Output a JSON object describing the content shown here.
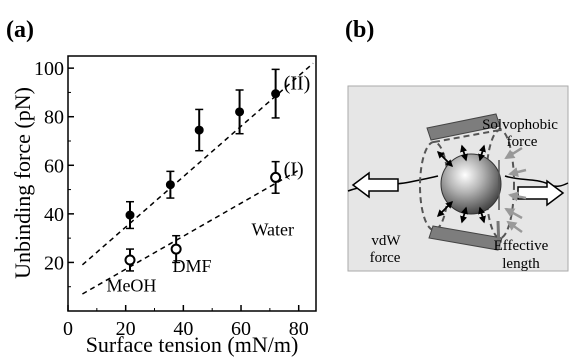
{
  "panels": [
    {
      "label": "(a)"
    },
    {
      "label": "(b)"
    }
  ],
  "chart_data": {
    "type": "scatter",
    "panel": "(a)",
    "xlabel": "Surface tension (mN/m)",
    "ylabel": "Unbinding force (pN)",
    "xlim": [
      0,
      86
    ],
    "ylim": [
      0,
      105
    ],
    "xticks": [
      0,
      20,
      40,
      60,
      80
    ],
    "yticks": [
      20,
      40,
      60,
      80,
      100
    ],
    "grid": false,
    "series": [
      {
        "name": "(II)",
        "marker": "filled-circle",
        "x": [
          21.5,
          35.5,
          45.5,
          59.5,
          72.0
        ],
        "y": [
          39.5,
          52.0,
          74.5,
          82.0,
          89.5
        ],
        "err": [
          5.5,
          5.5,
          8.5,
          9.0,
          10.0
        ],
        "fit": {
          "style": "dashed",
          "x": [
            5,
            85
          ],
          "y": [
            19,
            102
          ]
        }
      },
      {
        "name": "(I)",
        "marker": "open-circle",
        "x": [
          21.5,
          37.5,
          72.0
        ],
        "y": [
          21.0,
          25.5,
          55.0
        ],
        "err": [
          4.5,
          5.5,
          6.5
        ],
        "fit": {
          "style": "dashed",
          "x": [
            5,
            80
          ],
          "y": [
            7,
            58
          ]
        }
      }
    ],
    "annotations": [
      {
        "text": "MeOH",
        "x": 22,
        "y": 8
      },
      {
        "text": "DMF",
        "x": 43,
        "y": 16
      },
      {
        "text": "Water",
        "x": 71,
        "y": 31
      }
    ]
  },
  "schematic": {
    "labels": {
      "solvophobic_line1": "Solvophobic",
      "solvophobic_line2": "force",
      "vdw_line1": "vdW",
      "vdw_line2": "force",
      "effective_line1": "Effective",
      "effective_line2": "length"
    },
    "colors": {
      "background": "#e6e6e6",
      "border": "#aaaaaa",
      "cylinder": "#7d7d7d",
      "arrow_gray": "#999999"
    }
  }
}
